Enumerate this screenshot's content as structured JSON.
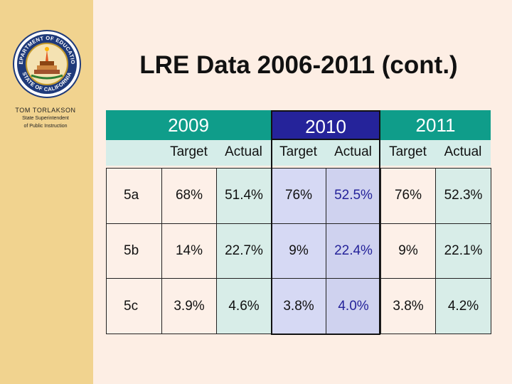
{
  "sidebar": {
    "seal_ring_top": "DEPARTMENT OF EDUCATION",
    "seal_ring_bottom": "STATE OF CALIFORNIA",
    "person_name": "TOM TORLAKSON",
    "person_title_line1": "State Superintendent",
    "person_title_line2": "of Public Instruction"
  },
  "slide": {
    "title": "LRE Data 2006-2011 (cont.)"
  },
  "table": {
    "years": [
      "2009",
      "2010",
      "2011"
    ],
    "subheaders": [
      "Target",
      "Actual",
      "Target",
      "Actual",
      "Target",
      "Actual"
    ],
    "rows": [
      {
        "label": "5a",
        "values": [
          "68%",
          "51.4%",
          "76%",
          "52.5%",
          "76%",
          "52.3%"
        ]
      },
      {
        "label": "5b",
        "values": [
          "14%",
          "22.7%",
          "9%",
          "22.4%",
          "9%",
          "22.1%"
        ]
      },
      {
        "label": "5c",
        "values": [
          "3.9%",
          "4.6%",
          "3.8%",
          "4.0%",
          "3.8%",
          "4.2%"
        ]
      }
    ]
  },
  "colors": {
    "teal": "#0f9d8a",
    "navy": "#25239a",
    "sidebar": "#f1d38f",
    "background": "#fdeee4"
  }
}
